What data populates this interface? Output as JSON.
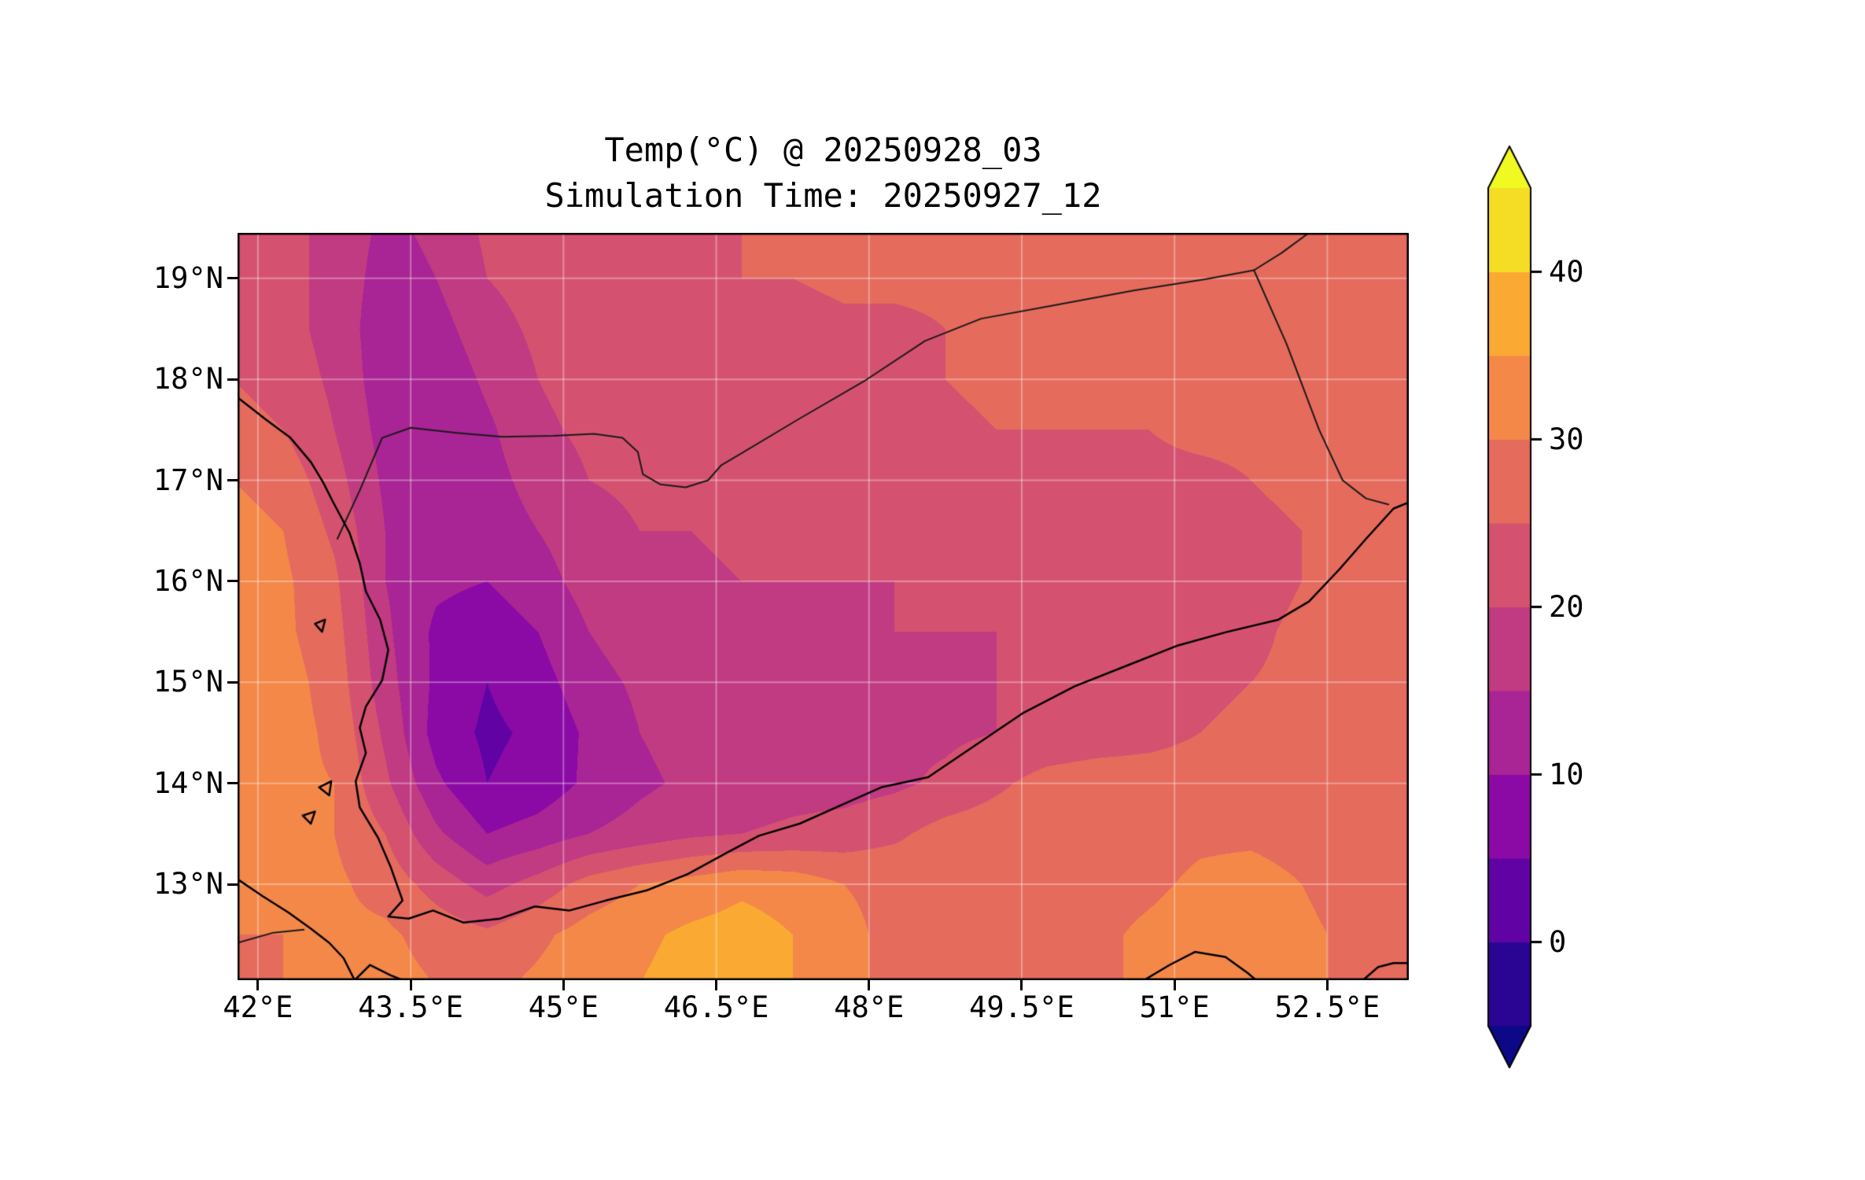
{
  "title": {
    "line1": "Temp(°C) @ 20250928_03",
    "line2": "Simulation Time: 20250927_12"
  },
  "colors": {
    "background": "#ffffff",
    "axes": "#000000",
    "text": "#000000",
    "gridline": "rgba(255,255,255,0.35)",
    "coastline": "#000000",
    "border_line": "#1a1a1a"
  },
  "chart_data": {
    "type": "heatmap",
    "subtype": "filled_contour_map",
    "title": "Temp(°C) @ 20250928_03",
    "subtitle": "Simulation Time: 20250927_12",
    "variable": "Temperature",
    "units": "°C",
    "xlabel": "",
    "ylabel": "",
    "xlim": [
      41.8,
      53.3
    ],
    "ylim": [
      12.05,
      19.45
    ],
    "grid_on": true,
    "x_ticks": {
      "values": [
        42,
        43.5,
        45,
        46.5,
        48,
        49.5,
        51,
        52.5
      ],
      "labels": [
        "42°E",
        "43.5°E",
        "45°E",
        "46.5°E",
        "48°E",
        "49.5°E",
        "51°E",
        "52.5°E"
      ]
    },
    "y_ticks": {
      "values": [
        13,
        14,
        15,
        16,
        17,
        18,
        19
      ],
      "labels": [
        "13°N",
        "14°N",
        "15°N",
        "16°N",
        "17°N",
        "18°N",
        "19°N"
      ]
    },
    "colorbar": {
      "vmin": -5,
      "vmax": 45,
      "band_step": 5,
      "ticks": [
        0,
        10,
        20,
        30,
        40
      ],
      "labels": [
        "0",
        "10",
        "20",
        "30",
        "40"
      ],
      "extend": "both",
      "colormap": "plasma",
      "stops": [
        [
          0.0,
          "#0d0887"
        ],
        [
          0.125,
          "#5601a4"
        ],
        [
          0.25,
          "#8b0aa5"
        ],
        [
          0.375,
          "#b12a90"
        ],
        [
          0.5,
          "#cb4679"
        ],
        [
          0.625,
          "#e16462"
        ],
        [
          0.75,
          "#f38849"
        ],
        [
          0.875,
          "#fcb32c"
        ],
        [
          1.0,
          "#f0f921"
        ]
      ]
    },
    "field": {
      "lons": [
        41.75,
        42.25,
        42.75,
        43.25,
        43.75,
        44.25,
        44.75,
        45.25,
        45.75,
        46.25,
        46.75,
        47.25,
        47.75,
        48.25,
        48.75,
        49.25,
        49.75,
        50.25,
        50.75,
        51.25,
        51.75,
        52.25,
        52.75,
        53.25
      ],
      "lats": [
        19.5,
        19.0,
        18.5,
        18.0,
        17.5,
        17.0,
        16.5,
        16.0,
        15.5,
        15.0,
        14.5,
        14.0,
        13.5,
        13.0,
        12.5,
        12.0
      ],
      "temps_c": [
        [
          23,
          22,
          18,
          14,
          16,
          21,
          23,
          23,
          23,
          24,
          25,
          26,
          26,
          26,
          26,
          26,
          26,
          26,
          26,
          26,
          26,
          27,
          27,
          27
        ],
        [
          23,
          22,
          18,
          13,
          15,
          20,
          22,
          23,
          23,
          24,
          25,
          25,
          26,
          26,
          26,
          26,
          26,
          26,
          26,
          26,
          26,
          27,
          27,
          27
        ],
        [
          24,
          22,
          18,
          12,
          13,
          18,
          21,
          22,
          22,
          23,
          23,
          23,
          24,
          24,
          25,
          26,
          26,
          26,
          26,
          26,
          26,
          27,
          27,
          27
        ],
        [
          25,
          23,
          19,
          12,
          11,
          16,
          20,
          22,
          22,
          22,
          23,
          23,
          23,
          24,
          25,
          26,
          26,
          26,
          26,
          26,
          26,
          27,
          27,
          28
        ],
        [
          27,
          25,
          20,
          13,
          10,
          14,
          19,
          21,
          22,
          22,
          23,
          23,
          23,
          24,
          24,
          25,
          25,
          25,
          25,
          26,
          26,
          26,
          27,
          28
        ],
        [
          30,
          28,
          22,
          14,
          11,
          13,
          17,
          20,
          21,
          21,
          22,
          22,
          22,
          22,
          23,
          23,
          23,
          23,
          24,
          24,
          25,
          26,
          27,
          28
        ],
        [
          32,
          30,
          24,
          15,
          12,
          12,
          15,
          18,
          20,
          20,
          21,
          21,
          21,
          21,
          21,
          22,
          22,
          22,
          23,
          23,
          24,
          25,
          26,
          27
        ],
        [
          33,
          31,
          26,
          15,
          11,
          10,
          13,
          17,
          19,
          19,
          20,
          20,
          20,
          20,
          21,
          21,
          21,
          21,
          22,
          22,
          23,
          25,
          26,
          27
        ],
        [
          33,
          31,
          27,
          16,
          9,
          7,
          10,
          15,
          18,
          19,
          19,
          19,
          19,
          20,
          20,
          20,
          21,
          21,
          22,
          23,
          24,
          26,
          27,
          28
        ],
        [
          33,
          32,
          28,
          17,
          9,
          5,
          8,
          13,
          16,
          18,
          16,
          18,
          19,
          19,
          19,
          20,
          20,
          21,
          22,
          23,
          25,
          26,
          27,
          28
        ],
        [
          32,
          32,
          29,
          19,
          8,
          4,
          6,
          11,
          15,
          17,
          17,
          18,
          18,
          19,
          19,
          20,
          21,
          22,
          23,
          25,
          27,
          28,
          28,
          28
        ],
        [
          32,
          31,
          30,
          21,
          11,
          5,
          7,
          11,
          14,
          16,
          17,
          18,
          18,
          19,
          21,
          24,
          27,
          28,
          28,
          28,
          28,
          28,
          28,
          28
        ],
        [
          31,
          31,
          30,
          25,
          16,
          10,
          12,
          15,
          17,
          19,
          20,
          21,
          22,
          24,
          27,
          28,
          28,
          28,
          28,
          29,
          29,
          28,
          28,
          28
        ],
        [
          30,
          30,
          31,
          28,
          23,
          18,
          22,
          27,
          30,
          32,
          34,
          33,
          30,
          29,
          28,
          28,
          28,
          28,
          29,
          31,
          32,
          30,
          28,
          28
        ],
        [
          30,
          30,
          31,
          31,
          28,
          26,
          29,
          32,
          34,
          36,
          37,
          35,
          31,
          29,
          28,
          28,
          28,
          29,
          31,
          33,
          34,
          31,
          29,
          28
        ],
        [
          29,
          30,
          31,
          32,
          30,
          29,
          31,
          33,
          35,
          37,
          37,
          35,
          31,
          29,
          28,
          28,
          28,
          29,
          31,
          34,
          34,
          31,
          29,
          28
        ]
      ]
    },
    "overlays": {
      "coastlines": [
        [
          [
            41.8,
            17.82
          ],
          [
            42.08,
            17.6
          ],
          [
            42.32,
            17.42
          ],
          [
            42.52,
            17.18
          ],
          [
            42.64,
            16.98
          ],
          [
            42.74,
            16.78
          ],
          [
            42.9,
            16.48
          ],
          [
            43.0,
            16.18
          ],
          [
            43.06,
            15.9
          ],
          [
            43.2,
            15.62
          ],
          [
            43.28,
            15.32
          ],
          [
            43.22,
            15.02
          ],
          [
            43.06,
            14.76
          ],
          [
            43.0,
            14.55
          ],
          [
            43.06,
            14.3
          ],
          [
            42.96,
            14.02
          ],
          [
            43.0,
            13.76
          ],
          [
            43.18,
            13.46
          ],
          [
            43.3,
            13.18
          ],
          [
            43.42,
            12.84
          ],
          [
            43.28,
            12.68
          ],
          [
            43.48,
            12.66
          ],
          [
            43.72,
            12.74
          ],
          [
            44.02,
            12.62
          ],
          [
            44.38,
            12.66
          ],
          [
            44.72,
            12.78
          ],
          [
            45.06,
            12.74
          ],
          [
            45.42,
            12.84
          ],
          [
            45.82,
            12.94
          ],
          [
            46.22,
            13.1
          ],
          [
            46.62,
            13.32
          ],
          [
            46.92,
            13.48
          ],
          [
            47.32,
            13.6
          ],
          [
            47.72,
            13.78
          ],
          [
            48.12,
            13.96
          ],
          [
            48.58,
            14.06
          ],
          [
            49.02,
            14.36
          ],
          [
            49.52,
            14.7
          ],
          [
            50.02,
            14.96
          ],
          [
            50.52,
            15.16
          ],
          [
            51.02,
            15.36
          ],
          [
            51.52,
            15.5
          ],
          [
            52.02,
            15.62
          ],
          [
            52.32,
            15.8
          ],
          [
            52.62,
            16.12
          ],
          [
            52.88,
            16.42
          ],
          [
            53.15,
            16.72
          ],
          [
            53.3,
            16.78
          ]
        ],
        [
          [
            41.8,
            13.05
          ],
          [
            42.05,
            12.88
          ],
          [
            42.3,
            12.72
          ],
          [
            42.52,
            12.56
          ],
          [
            42.7,
            12.42
          ],
          [
            42.84,
            12.27
          ],
          [
            42.95,
            12.05
          ]
        ],
        [
          [
            42.95,
            12.05
          ],
          [
            43.1,
            12.2
          ],
          [
            43.3,
            12.1
          ],
          [
            43.42,
            12.05
          ]
        ],
        [
          [
            50.7,
            12.05
          ],
          [
            50.95,
            12.2
          ],
          [
            51.2,
            12.33
          ],
          [
            51.5,
            12.28
          ],
          [
            51.72,
            12.12
          ],
          [
            51.8,
            12.05
          ]
        ],
        [
          [
            52.85,
            12.05
          ],
          [
            53.0,
            12.18
          ],
          [
            53.15,
            12.22
          ],
          [
            53.3,
            12.22
          ]
        ],
        [
          [
            42.56,
            15.58
          ],
          [
            42.66,
            15.62
          ],
          [
            42.63,
            15.5
          ],
          [
            42.56,
            15.58
          ]
        ],
        [
          [
            42.6,
            13.96
          ],
          [
            42.72,
            14.02
          ],
          [
            42.7,
            13.88
          ],
          [
            42.6,
            13.96
          ]
        ],
        [
          [
            42.44,
            13.68
          ],
          [
            42.56,
            13.72
          ],
          [
            42.52,
            13.6
          ],
          [
            42.44,
            13.68
          ]
        ]
      ],
      "borders": [
        [
          [
            42.78,
            16.42
          ],
          [
            43.0,
            16.9
          ],
          [
            43.22,
            17.42
          ],
          [
            43.5,
            17.52
          ],
          [
            43.95,
            17.47
          ],
          [
            44.4,
            17.43
          ],
          [
            44.9,
            17.44
          ],
          [
            45.3,
            17.46
          ],
          [
            45.58,
            17.42
          ],
          [
            45.73,
            17.28
          ],
          [
            45.78,
            17.06
          ],
          [
            45.95,
            16.96
          ],
          [
            46.2,
            16.93
          ],
          [
            46.42,
            17.0
          ],
          [
            46.55,
            17.15
          ],
          [
            46.72,
            17.25
          ],
          [
            47.3,
            17.6
          ],
          [
            47.95,
            17.98
          ],
          [
            48.55,
            18.38
          ],
          [
            49.1,
            18.6
          ],
          [
            49.8,
            18.73
          ],
          [
            50.6,
            18.88
          ],
          [
            51.3,
            18.99
          ],
          [
            51.78,
            19.08
          ]
        ],
        [
          [
            51.78,
            19.08
          ],
          [
            52.05,
            19.25
          ],
          [
            52.32,
            19.45
          ]
        ],
        [
          [
            51.78,
            19.08
          ],
          [
            52.1,
            18.35
          ],
          [
            52.42,
            17.5
          ],
          [
            52.65,
            17.0
          ],
          [
            52.88,
            16.82
          ],
          [
            53.1,
            16.76
          ]
        ],
        [
          [
            41.8,
            12.42
          ],
          [
            42.15,
            12.52
          ],
          [
            42.45,
            12.55
          ]
        ]
      ]
    }
  }
}
